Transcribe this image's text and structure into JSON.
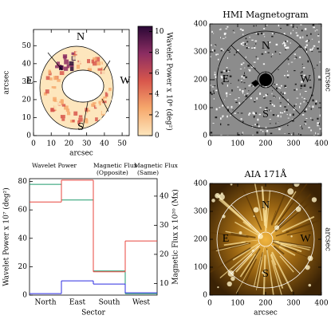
{
  "chart_data": [
    {
      "type": "map",
      "xlabel": "arcsec",
      "ylabel": "arcsec",
      "xlim": [
        0,
        54
      ],
      "ylim": [
        0,
        59
      ],
      "xticks": [
        0,
        10,
        20,
        30,
        40,
        50
      ],
      "yticks": [
        0,
        10,
        20,
        30,
        40,
        50
      ],
      "annotations": [
        "N",
        "E",
        "W",
        "S"
      ],
      "colorbar": {
        "label": "Wavelet Power x 10⁶ (deg²)",
        "lim": [
          0,
          10.5
        ],
        "ticks": [
          0,
          2,
          4,
          6,
          8,
          10
        ],
        "colors": [
          "#fde6bd",
          "#f6a86c",
          "#d8574c",
          "#8c2d62",
          "#2a0836"
        ]
      }
    },
    {
      "type": "image",
      "title": "HMI Magnetogram",
      "ylabel": "arcsec",
      "xlim": [
        0,
        400
      ],
      "ylim": [
        0,
        400
      ],
      "xticks": [
        0,
        100,
        200,
        300,
        400
      ],
      "yticks": [
        0,
        100,
        200,
        300,
        400
      ],
      "annotations": [
        "N",
        "E",
        "W",
        "S"
      ]
    },
    {
      "type": "step",
      "xlabel": "Sector",
      "ylabel": "Wavelet Power x 10⁷ (deg²)",
      "y2label": "Magnetic Flux x 10²⁰ (Mx)",
      "categories": [
        "North",
        "East",
        "South",
        "West"
      ],
      "ylim": [
        0,
        82
      ],
      "yticks": [
        0,
        20,
        40,
        60,
        80
      ],
      "y2lim": [
        6,
        46
      ],
      "y2ticks": [
        10,
        20,
        30,
        40
      ],
      "series": [
        {
          "name": "Wavelet Power",
          "color": "#1f9a6c",
          "values": [
            78,
            67,
            17,
            1
          ]
        },
        {
          "name": "Magnetic Flux (Opposite)",
          "color": "#e8453d",
          "axis": "y2",
          "values": [
            38,
            45.5,
            14,
            24.6
          ]
        },
        {
          "name": "Magnetic Flux (Same)",
          "color": "#2b2be0",
          "axis": "y2",
          "values": [
            6.5,
            10.9,
            9.8,
            6.8
          ]
        }
      ]
    },
    {
      "type": "image",
      "title": "AIA 171Å",
      "xlabel": "arcsec",
      "ylabel": "arcsec",
      "xlim": [
        0,
        400
      ],
      "ylim": [
        0,
        400
      ],
      "xticks": [
        0,
        100,
        200,
        300,
        400
      ],
      "yticks": [
        0,
        100,
        200,
        300,
        400
      ],
      "annotations": [
        "N",
        "E",
        "W",
        "S"
      ]
    }
  ]
}
